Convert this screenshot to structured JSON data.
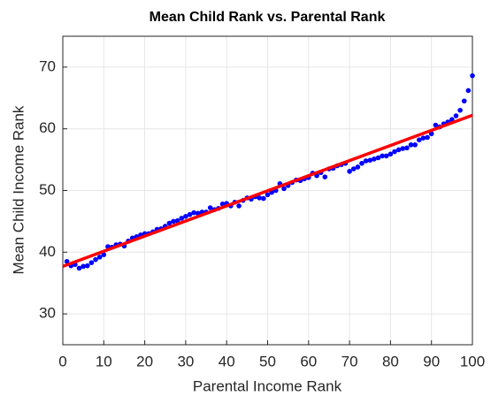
{
  "chart_data": {
    "type": "scatter",
    "title": "Mean Child Rank vs. Parental Rank",
    "xlabel": "Parental Income Rank",
    "ylabel": "Mean Child Income Rank",
    "xlim": [
      0,
      100
    ],
    "ylim": [
      25,
      75
    ],
    "xticks": [
      0,
      10,
      20,
      30,
      40,
      50,
      60,
      70,
      80,
      90,
      100
    ],
    "yticks": [
      30,
      40,
      50,
      60,
      70
    ],
    "grid": true,
    "series": [
      {
        "color": "#0000ff",
        "mode": "markers",
        "x": [
          1,
          2,
          3,
          4,
          5,
          6,
          7,
          8,
          9,
          10,
          11,
          12,
          13,
          14,
          15,
          16,
          17,
          18,
          19,
          20,
          21,
          22,
          23,
          24,
          25,
          26,
          27,
          28,
          29,
          30,
          31,
          32,
          33,
          34,
          35,
          36,
          37,
          38,
          39,
          40,
          41,
          42,
          43,
          44,
          45,
          46,
          47,
          48,
          49,
          50,
          51,
          52,
          53,
          54,
          55,
          56,
          57,
          58,
          59,
          60,
          61,
          62,
          63,
          64,
          65,
          66,
          67,
          68,
          69,
          70,
          71,
          72,
          73,
          74,
          75,
          76,
          77,
          78,
          79,
          80,
          81,
          82,
          83,
          84,
          85,
          86,
          87,
          88,
          89,
          90,
          91,
          92,
          93,
          94,
          95,
          96,
          97,
          98,
          99,
          100
        ],
        "values": [
          38.5,
          37.8,
          38.0,
          37.4,
          37.7,
          37.8,
          38.3,
          38.8,
          39.2,
          39.6,
          40.9,
          40.8,
          41.2,
          41.3,
          41.0,
          41.8,
          42.3,
          42.5,
          42.8,
          43.0,
          43.0,
          43.3,
          43.7,
          43.8,
          44.2,
          44.7,
          45.0,
          45.1,
          45.5,
          45.8,
          46.1,
          46.4,
          46.3,
          46.5,
          46.5,
          47.2,
          46.9,
          47.1,
          47.8,
          47.9,
          47.5,
          48.1,
          47.5,
          48.4,
          48.8,
          48.6,
          49.0,
          48.8,
          48.7,
          49.3,
          49.7,
          50.0,
          51.1,
          50.3,
          50.8,
          51.3,
          51.7,
          51.6,
          51.9,
          52.1,
          52.8,
          52.4,
          52.9,
          52.2,
          53.5,
          53.6,
          54.0,
          54.2,
          54.4,
          53.1,
          53.5,
          53.8,
          54.4,
          54.8,
          54.9,
          55.1,
          55.3,
          55.6,
          55.6,
          55.9,
          56.3,
          56.6,
          56.8,
          56.9,
          57.4,
          57.4,
          58.2,
          58.5,
          58.6,
          59.2,
          60.6,
          60.3,
          60.8,
          61.1,
          61.5,
          62.1,
          63.0,
          64.5,
          66.2,
          68.6
        ]
      },
      {
        "color": "#ff0000",
        "mode": "line",
        "x": [
          0,
          100
        ],
        "values": [
          37.7,
          62.2
        ]
      }
    ]
  }
}
